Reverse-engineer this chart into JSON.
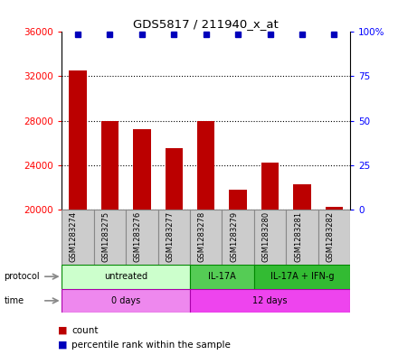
{
  "title": "GDS5817 / 211940_x_at",
  "samples": [
    "GSM1283274",
    "GSM1283275",
    "GSM1283276",
    "GSM1283277",
    "GSM1283278",
    "GSM1283279",
    "GSM1283280",
    "GSM1283281",
    "GSM1283282"
  ],
  "counts": [
    32500,
    28000,
    27200,
    25500,
    28000,
    21800,
    24200,
    22300,
    20200
  ],
  "percentiles": [
    100,
    100,
    100,
    100,
    100,
    100,
    100,
    100,
    100
  ],
  "ylim_left": [
    20000,
    36000
  ],
  "ylim_right": [
    0,
    100
  ],
  "yticks_left": [
    20000,
    24000,
    28000,
    32000,
    36000
  ],
  "yticks_right": [
    0,
    25,
    50,
    75,
    100
  ],
  "bar_color": "#bb0000",
  "percentile_color": "#0000bb",
  "protocol_groups": [
    {
      "label": "untreated",
      "start": 0,
      "end": 4,
      "color": "#ccffcc",
      "border_color": "#008800"
    },
    {
      "label": "IL-17A",
      "start": 4,
      "end": 6,
      "color": "#55cc55",
      "border_color": "#008800"
    },
    {
      "label": "IL-17A + IFN-g",
      "start": 6,
      "end": 9,
      "color": "#33bb33",
      "border_color": "#008800"
    }
  ],
  "time_groups": [
    {
      "label": "0 days",
      "start": 0,
      "end": 4,
      "color": "#ee88ee",
      "border_color": "#aa00aa"
    },
    {
      "label": "12 days",
      "start": 4,
      "end": 9,
      "color": "#ee44ee",
      "border_color": "#aa00aa"
    }
  ],
  "legend_count_color": "#bb0000",
  "legend_percentile_color": "#0000bb",
  "bg_color": "#ffffff",
  "sample_bg_color": "#cccccc",
  "sample_border_color": "#888888"
}
